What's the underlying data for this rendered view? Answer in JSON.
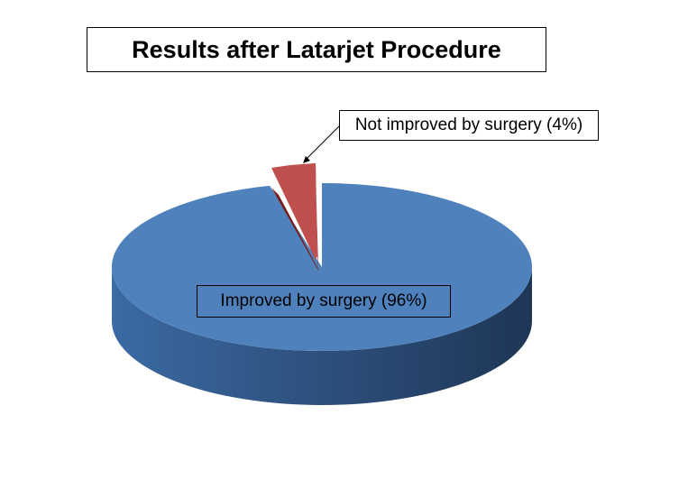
{
  "chart_data": {
    "type": "pie",
    "title": "Results after Latarjet Procedure",
    "slices": [
      {
        "label": "Not improved by surgery (4%)",
        "value": 4,
        "color": "#C0504D",
        "exploded": true
      },
      {
        "label": "Improved by surgery (96%)",
        "value": 96,
        "color": "#4F81BD",
        "exploded": false
      }
    ],
    "style": "3d-exploded-pie",
    "legend": "none"
  }
}
